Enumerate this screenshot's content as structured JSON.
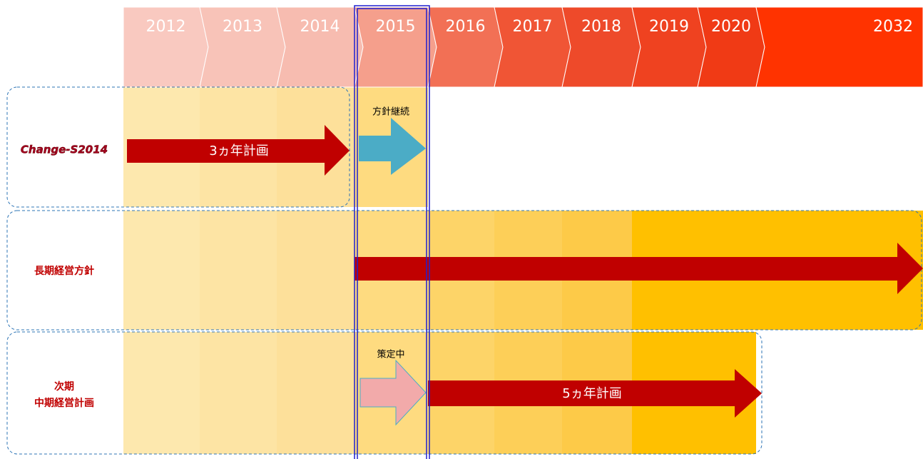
{
  "header": {
    "years": [
      "2012",
      "2013",
      "2014",
      "2015",
      "2016",
      "2017",
      "2018",
      "2019",
      "2020",
      "2032"
    ]
  },
  "rows": [
    {
      "label": [
        "Change-S2014"
      ],
      "arrow": "3ヵ年計画",
      "note": "方針継続"
    },
    {
      "label": [
        "長期経営方針"
      ]
    },
    {
      "label": [
        "次期",
        "中期経営計画"
      ],
      "arrow": "5ヵ年計画",
      "note": "策定中"
    }
  ]
}
